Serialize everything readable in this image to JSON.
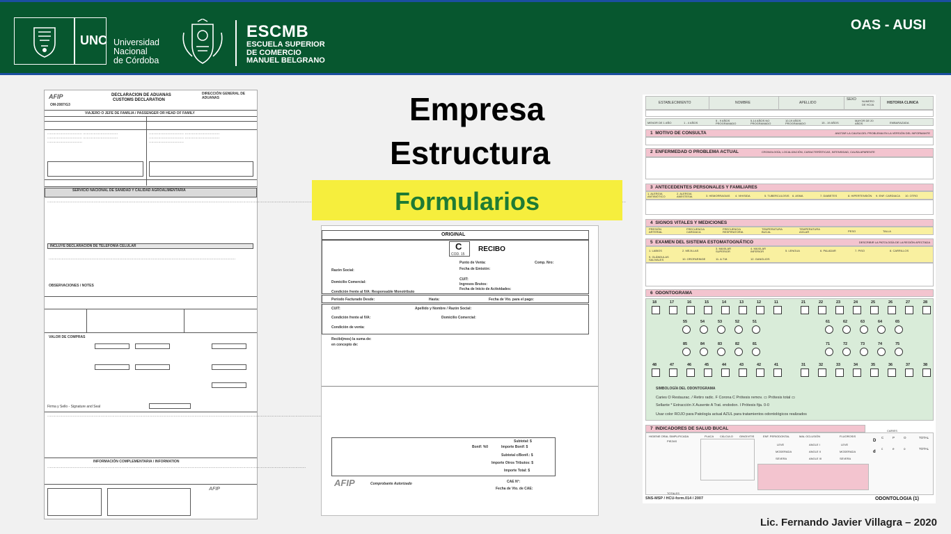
{
  "header": {
    "unc_short": "UNC",
    "unc_name": [
      "Universidad",
      "Nacional",
      "de Córdoba"
    ],
    "escmb_short": "ESCMB",
    "escmb_name": [
      "ESCUELA SUPERIOR",
      "DE COMERCIO",
      "MANUEL BELGRANO"
    ],
    "right_label": "OAS - AUSI"
  },
  "slide": {
    "title_line1": "Empresa",
    "title_line2": "Estructura",
    "subtitle": "Formularios",
    "credit": "Lic. Fernando Javier Villagra – 2020"
  },
  "customs_form": {
    "agency": "AFIP",
    "form_code": "OM-2087/G3",
    "title_es": "DECLARACION DE ADUANAS",
    "title_en": "CUSTOMS DECLARATION",
    "head_org": "DIRECCIÓN GENERAL DE ADUANAS",
    "traveler_row": "VIAJERO O JEFE DE FAMILIA / PASSENGER OR HEAD OF FAMILY",
    "sanitary": "SERVICIO NACIONAL DE SANIDAD Y CALIDAD AGROALIMENTARIA",
    "phone_block": "INCLUYE DECLARACION DE TELEFONÍA CELULAR",
    "observations": "OBSERVACIONES / NOTES",
    "value_block": "VALOR DE COMPRAS",
    "complement": "INFORMACIÓN COMPLEMENTARIA / INFORMATION",
    "sign": "Firma y Sello - Signature and Seal"
  },
  "receipt": {
    "original": "ORIGINAL",
    "letter": "C",
    "cod": "COD. 15",
    "title": "RECIBO",
    "punto": "Punto de Venta:",
    "comp": "Comp. Nro:",
    "fecha": "Fecha de Emisión:",
    "razon": "Razón Social:",
    "domicilio": "Domicilio Comercial:",
    "cuit_right": "CUIT:",
    "ingresos": "Ingresos Brutos:",
    "inicio": "Fecha de Inicio de Actividades:",
    "condicion": "Condición frente al IVA:   Responsable Monotributo",
    "periodo": "Período Facturado Desde:",
    "hasta": "Hasta:",
    "vto": "Fecha de Vto. para el pago:",
    "cuit": "CUIT:",
    "apellido": "Apellido y Nombre / Razón Social:",
    "cond_iva": "Condición frente al IVA:",
    "dom_comercial": "Domicilio Comercial:",
    "cond_venta": "Condición de venta:",
    "recibimos": "Recibí(mos) la suma de:",
    "concepto": "en concepto de:",
    "subtotal": "Subtotal: $",
    "bonif": "Bonif: %0",
    "importe_bonif": "Importe Bonif: $",
    "subtotal_bonif": "Subtotal c/Bonif.: $",
    "otros": "Importe Otros Tributos: $",
    "total": "Importe Total: $",
    "logo": "AFIP",
    "autorizado": "Comprobante Autorizado",
    "cae": "CAE N°:",
    "cae_vto": "Fecha de Vto. de CAE:"
  },
  "clinical": {
    "head_cols": [
      "ESTABLECIMIENTO",
      "NOMBRE",
      "APELLIDO",
      "SEXO",
      "NUMERO DE HOJA",
      "HISTORIA CLINICA"
    ],
    "age_cols": [
      "MENOR DE 1 AÑO",
      "1 - 4 AÑOS",
      "5 - 9 AÑOS PROGRAMADO",
      "5-14 AÑOS NO PROGRAMADO",
      "10-19 AÑOS PROGRAMADO",
      "15 - 19 AÑOS",
      "MAYOR DE 20 AÑOS",
      "EMBARAZADA"
    ],
    "sections": [
      {
        "num": "1",
        "label": "MOTIVO DE CONSULTA",
        "note": "ANOTAR LA CAUSA DEL PROBLEMA EN LA VERSIÓN DEL INFORMANTE"
      },
      {
        "num": "2",
        "label": "ENFERMEDAD O PROBLEMA ACTUAL",
        "note": "CRONOLOGÍA, LOCALIZACIÓN, CARACTERÍSTICAS, INTENSIDAD, CAUSA APARENTE"
      },
      {
        "num": "3",
        "label": "ANTECEDENTES PERSONALES Y FAMILIARES",
        "note": ""
      },
      {
        "num": "4",
        "label": "SIGNOS VITALES Y MEDICIONES",
        "note": ""
      },
      {
        "num": "5",
        "label": "EXAMEN DEL SISTEMA ESTOMATOGNÁTICO",
        "note": "DESCRIBIR LA PATOLOGÍA DE LA REGIÓN AFECTADA"
      },
      {
        "num": "6",
        "label": "ODONTOGRAMA",
        "note": ""
      },
      {
        "num": "7",
        "label": "INDICADORES DE SALUD BUCAL",
        "note": ""
      }
    ],
    "antecedentes": [
      "1. ALERGIA ANTIBIÓTICO",
      "2. ALERGIA ANESTESIA",
      "3. HEMORRAGIAS",
      "4. VIH/SIDA",
      "5. TUBERCULOSIS",
      "6. ASMA",
      "7. DIABETES",
      "8. HIPERTENSIÓN",
      "9. ENF. CARDIACA",
      "10. OTRO"
    ],
    "vitales": [
      "PRESIÓN ARTERIAL",
      "FRECUENCIA CARDIACA",
      "FRECUENCIA RESPIRATORIA",
      "TEMPERATURA BUCAL",
      "TEMPERATURA AXILAR",
      "PESO",
      "TALLA"
    ],
    "estomatognatico": [
      "1. LABIOS",
      "2. MEJILLAS",
      "3. MAXILAR SUPERIOR",
      "4. MAXILAR INFERIOR",
      "5. LENGUA",
      "6. PALADAR",
      "7. PISO",
      "8. CARRILLOS",
      "9. GLÁNDULAS SALIVALES",
      "10. OROFARINGE",
      "11. A.T.M.",
      "12. GANGLIOS"
    ],
    "teeth_upper": [
      "18",
      "17",
      "16",
      "15",
      "14",
      "13",
      "12",
      "11",
      "21",
      "22",
      "23",
      "24",
      "25",
      "26",
      "27",
      "28"
    ],
    "teeth_deciduous_upper": [
      "55",
      "54",
      "53",
      "52",
      "51",
      "61",
      "62",
      "63",
      "64",
      "65"
    ],
    "teeth_deciduous_lower": [
      "85",
      "84",
      "83",
      "82",
      "81",
      "71",
      "72",
      "73",
      "74",
      "75"
    ],
    "teeth_lower": [
      "48",
      "47",
      "46",
      "45",
      "44",
      "43",
      "42",
      "41",
      "31",
      "32",
      "33",
      "34",
      "35",
      "36",
      "37",
      "38"
    ],
    "symbology_title": "SIMBOLOGÍA DEL ODONTOGRAMA",
    "symbology_row1": "Caries  O    Restaurac. /    Retiro radic.  F    Corona   C    Prótesis remov.  ▭    Prótesis total  ▭",
    "symbology_row2": "Sellante  *    Extracción  X    Ausente  A    Trat. endodon.  I    Prótesis fija.    0-0",
    "color_note": "Usar color ROJO para Patología actual  AZUL para tratamientos odontológicos realizados",
    "indicators_cols": [
      "HIGIENE ORAL SIMPLIFICADA",
      "PLACA",
      "CÁLCULO",
      "GINGIVITIS",
      "ENF. PERIODONTAL",
      "MAL OCLUSIÓN",
      "FLUOROSIS"
    ],
    "indicator_levels": [
      "LEVE",
      "MODERADA",
      "SEVERA"
    ],
    "indicator_classes": [
      "ANGLE I",
      "ANGLE II",
      "ANGLE III"
    ],
    "cpo": [
      "C",
      "P",
      "O",
      "TOTAL"
    ],
    "ceo": [
      "c",
      "e",
      "o",
      "TOTAL"
    ],
    "caries_label": "CARIES",
    "totales": "TOTALES",
    "piezas": "PIEZAS",
    "footer_left": "SNS-MSP / HCU-form.014 / 2007",
    "footer_right": "ODONTOLOGIA  (1)"
  }
}
